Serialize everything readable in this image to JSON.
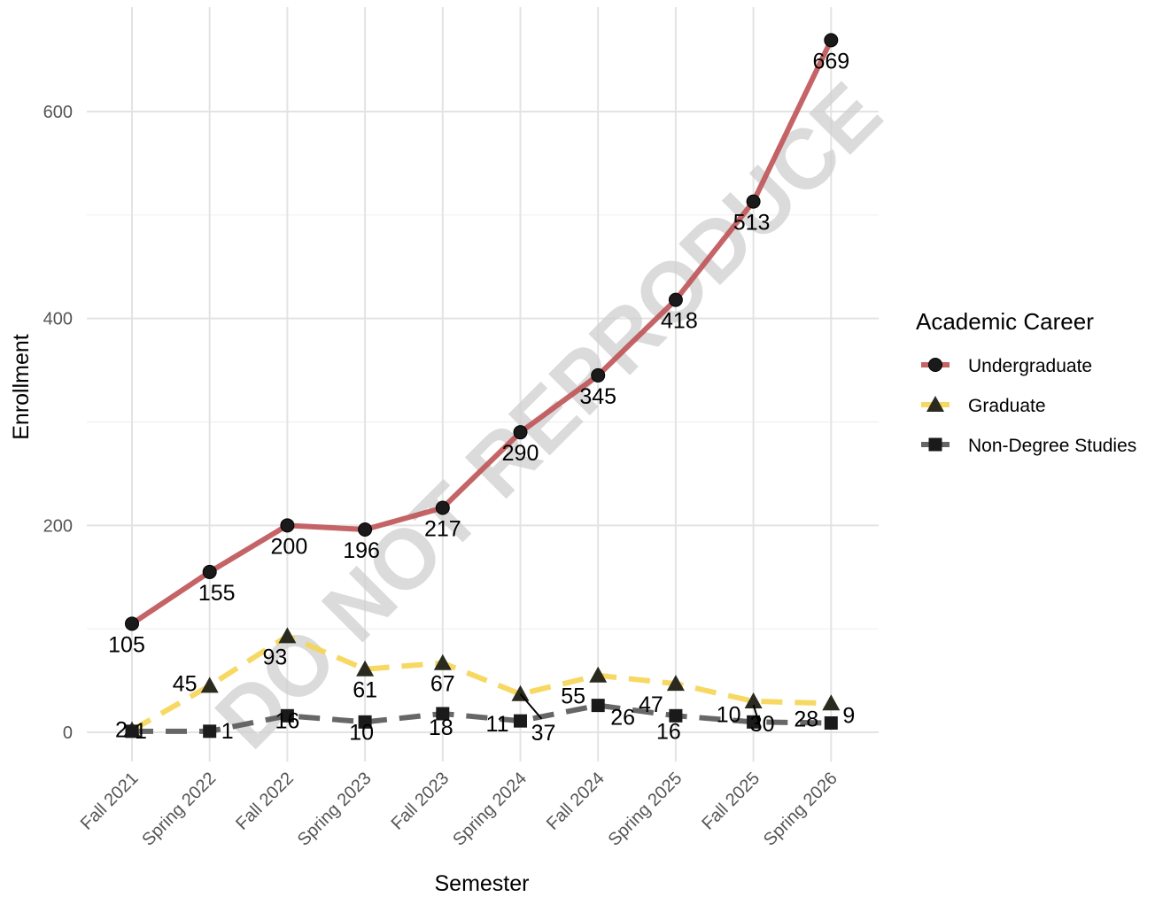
{
  "chart_data": {
    "type": "line",
    "xlabel": "Semester",
    "ylabel": "Enrollment",
    "ylim": [
      -30,
      700
    ],
    "yticks": [
      0,
      200,
      400,
      600
    ],
    "grid": true,
    "legend_position": "right",
    "legend_title": "Academic Career",
    "watermark": "DO NOT REPRODUCE",
    "categories": [
      "Fall 2021",
      "Spring 2022",
      "Fall 2022",
      "Spring 2023",
      "Fall 2023",
      "Spring 2024",
      "Fall 2024",
      "Spring 2025",
      "Fall 2025",
      "Spring 2026"
    ],
    "series": [
      {
        "name": "Undergraduate",
        "color": "#c0575a",
        "marker": "circle",
        "dash": "solid",
        "values": [
          105,
          155,
          200,
          196,
          217,
          290,
          345,
          418,
          513,
          669
        ]
      },
      {
        "name": "Graduate",
        "color": "#f5d556",
        "marker": "triangle",
        "dash": "dashed",
        "values": [
          2,
          45,
          93,
          61,
          67,
          37,
          55,
          47,
          30,
          28
        ]
      },
      {
        "name": "Non-Degree Studies",
        "color": "#5a5a5a",
        "marker": "square",
        "dash": "dashed",
        "values": [
          1,
          1,
          16,
          10,
          18,
          11,
          26,
          16,
          10,
          9
        ]
      }
    ]
  }
}
